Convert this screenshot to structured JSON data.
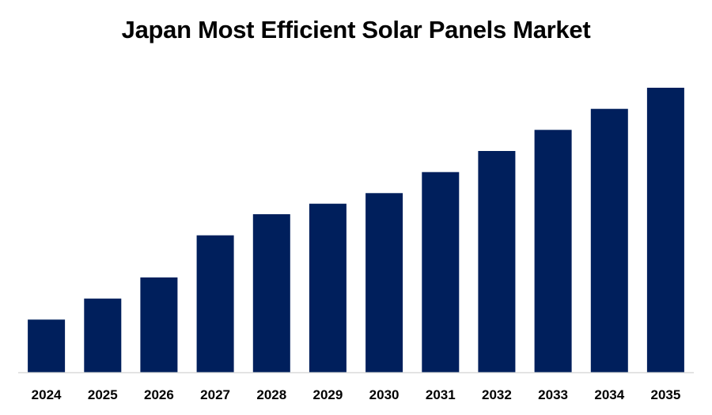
{
  "chart_data": {
    "type": "bar",
    "title": "Japan Most Efficient Solar Panels Market",
    "xlabel": "",
    "ylabel": "",
    "categories": [
      "2024",
      "2025",
      "2026",
      "2027",
      "2028",
      "2029",
      "2030",
      "2031",
      "2032",
      "2033",
      "2034",
      "2035"
    ],
    "values": [
      2.5,
      3.5,
      4.5,
      6.5,
      7.5,
      8.0,
      8.5,
      9.5,
      10.5,
      11.5,
      12.5,
      13.5
    ],
    "ylim": [
      0,
      15
    ],
    "bar_color": "#001f5c",
    "axis_color": "#d9d9d9",
    "grid": false,
    "legend": "none"
  }
}
